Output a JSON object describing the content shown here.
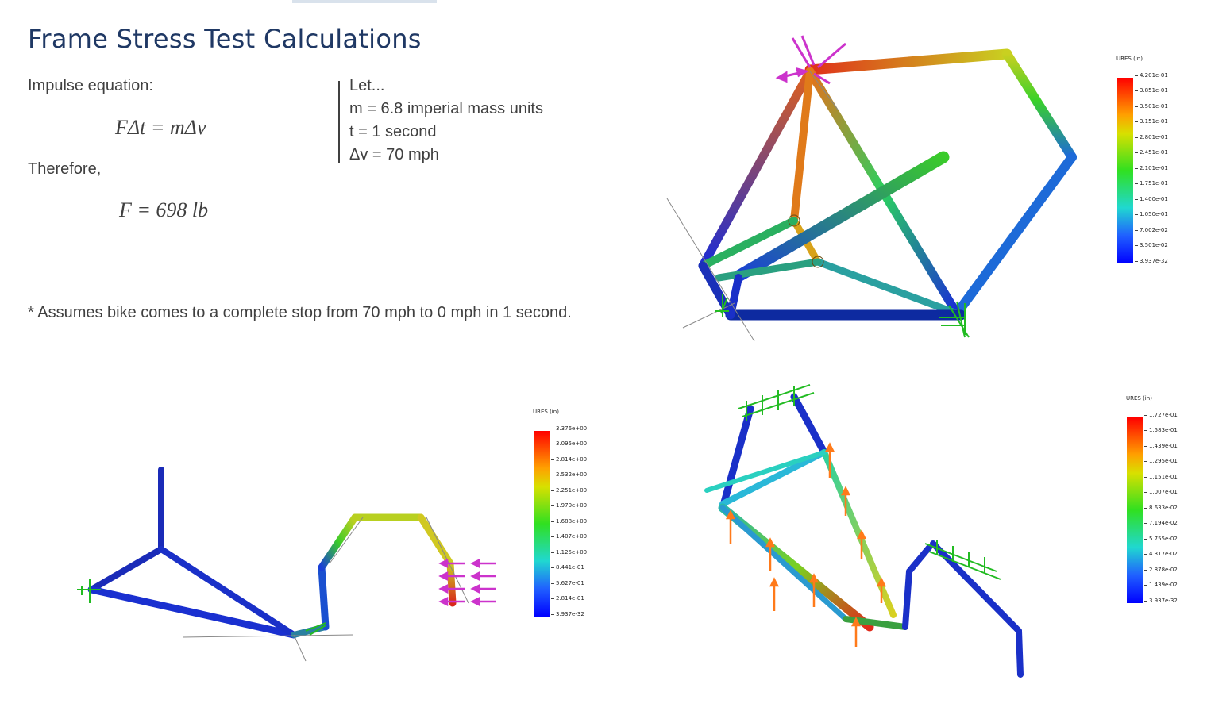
{
  "slide": {
    "title": "Frame Stress Test Calculations",
    "impulse_label": "Impulse equation:",
    "equation": "FΔt = mΔv",
    "therefore_label": "Therefore,",
    "result": "F = 698 lb",
    "let_lines": [
      "Let...",
      "m = 6.8 imperial mass units",
      "t = 1 second",
      "Δv = 70 mph"
    ],
    "footnote": "* Assumes bike comes to a complete stop from 70 mph to 0 mph in 1 second."
  },
  "legends": [
    {
      "title": "URES (in)",
      "ticks": [
        "4.201e-01",
        "3.851e-01",
        "3.501e-01",
        "3.151e-01",
        "2.801e-01",
        "2.451e-01",
        "2.101e-01",
        "1.751e-01",
        "1.400e-01",
        "1.050e-01",
        "7.002e-02",
        "3.501e-02",
        "3.937e-32"
      ]
    },
    {
      "title": "URES (in)",
      "ticks": [
        "3.376e+00",
        "3.095e+00",
        "2.814e+00",
        "2.532e+00",
        "2.251e+00",
        "1.970e+00",
        "1.688e+00",
        "1.407e+00",
        "1.125e+00",
        "8.441e-01",
        "5.627e-01",
        "2.814e-01",
        "3.937e-32"
      ]
    },
    {
      "title": "URES (in)",
      "ticks": [
        "1.727e-01",
        "1.583e-01",
        "1.439e-01",
        "1.295e-01",
        "1.151e-01",
        "1.007e-01",
        "8.633e-02",
        "7.194e-02",
        "5.755e-02",
        "4.317e-02",
        "2.878e-02",
        "1.439e-02",
        "3.937e-32"
      ]
    }
  ],
  "colors": {
    "title": "#1f3864",
    "load_arrow": "#cc33cc",
    "fixture_arrow": "#22bb22",
    "force_arrow": "#ff7a1a"
  }
}
